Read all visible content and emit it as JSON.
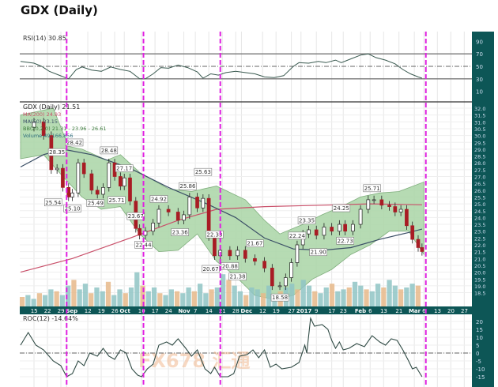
{
  "title": "GDX (Daily)",
  "watermark": "FX678 汇通",
  "colors": {
    "axis_panel": "#0d5656",
    "bb_fill": "#a9d5a6",
    "ma200": "#c9506a",
    "ma50": "#3b4f66",
    "down": "#a81c24",
    "marker": "#e020e0",
    "vol_a": "#8fc4c4",
    "vol_b": "#e6b98a"
  },
  "chart_data": [
    {
      "type": "line",
      "panel": "rsi",
      "legend": "RSI(14) 30.85",
      "ylim": [
        0,
        100
      ],
      "yticks": [
        "90",
        "70",
        "50",
        "30",
        "10"
      ],
      "ytick_values": [
        90,
        70,
        50,
        30,
        10
      ],
      "levels": [
        70,
        50,
        30
      ],
      "x_unit": "days since Aug 15 2016",
      "points": [
        [
          -7,
          58
        ],
        [
          0,
          55
        ],
        [
          4,
          50
        ],
        [
          8,
          42
        ],
        [
          13,
          36
        ],
        [
          18,
          30
        ],
        [
          22,
          45
        ],
        [
          25,
          49
        ],
        [
          30,
          44
        ],
        [
          35,
          42
        ],
        [
          40,
          49
        ],
        [
          45,
          45
        ],
        [
          50,
          42
        ],
        [
          55,
          30
        ],
        [
          58,
          30
        ],
        [
          62,
          38
        ],
        [
          66,
          48
        ],
        [
          70,
          47
        ],
        [
          75,
          52
        ],
        [
          80,
          48
        ],
        [
          85,
          41
        ],
        [
          88,
          31
        ],
        [
          92,
          38
        ],
        [
          96,
          36
        ],
        [
          100,
          40
        ],
        [
          105,
          42
        ],
        [
          110,
          40
        ],
        [
          115,
          38
        ],
        [
          120,
          33
        ],
        [
          125,
          32
        ],
        [
          130,
          35
        ],
        [
          135,
          50
        ],
        [
          138,
          56
        ],
        [
          143,
          55
        ],
        [
          148,
          58
        ],
        [
          152,
          56
        ],
        [
          157,
          60
        ],
        [
          160,
          56
        ],
        [
          165,
          62
        ],
        [
          170,
          68
        ],
        [
          174,
          70
        ],
        [
          178,
          64
        ],
        [
          183,
          60
        ],
        [
          188,
          54
        ],
        [
          192,
          45
        ],
        [
          196,
          38
        ],
        [
          200,
          33
        ],
        [
          202,
          31
        ]
      ]
    },
    {
      "type": "candlestick",
      "panel": "price",
      "legend": [
        "GDX (Daily) 21.51",
        "MA(200) 24.93",
        "MA(50) 23.15",
        "BB(20,2.0) 21.31 - 23.96 - 26.61",
        "Volume 49,166,856"
      ],
      "ylim": [
        18.2,
        32.3
      ],
      "yticks": [
        "32.0",
        "31.5",
        "31.0",
        "30.5",
        "30.0",
        "29.5",
        "29.0",
        "28.5",
        "28.0",
        "27.5",
        "27.0",
        "26.5",
        "26.0",
        "25.5",
        "25.0",
        "24.5",
        "24.0",
        "23.5",
        "23.0",
        "22.5",
        "22.0",
        "21.5",
        "21.0",
        "20.5",
        "20.0",
        "19.5",
        "19.0",
        "18.5"
      ],
      "closes": [
        [
          -7,
          30.6
        ],
        [
          0,
          31.0
        ],
        [
          5,
          30.0
        ],
        [
          9,
          27.5
        ],
        [
          12,
          27.6
        ],
        [
          15,
          26.2
        ],
        [
          18,
          25.5
        ],
        [
          20,
          25.8
        ],
        [
          23,
          28.0
        ],
        [
          26,
          27.2
        ],
        [
          30,
          26.0
        ],
        [
          33,
          25.7
        ],
        [
          36,
          26.2
        ],
        [
          39,
          28.0
        ],
        [
          42,
          27.0
        ],
        [
          45,
          26.3
        ],
        [
          47,
          26.9
        ],
        [
          50,
          25.2
        ],
        [
          53,
          23.2
        ],
        [
          55,
          22.7
        ],
        [
          58,
          23.0
        ],
        [
          62,
          23.6
        ],
        [
          65,
          24.6
        ],
        [
          70,
          24.4
        ],
        [
          75,
          23.8
        ],
        [
          78,
          24.2
        ],
        [
          81,
          25.5
        ],
        [
          85,
          24.7
        ],
        [
          88,
          25.4
        ],
        [
          91,
          22.6
        ],
        [
          94,
          21.2
        ],
        [
          97,
          21.6
        ],
        [
          102,
          21.2
        ],
        [
          106,
          21.6
        ],
        [
          110,
          21.0
        ],
        [
          115,
          20.8
        ],
        [
          120,
          20.3
        ],
        [
          124,
          19.0
        ],
        [
          128,
          19.0
        ],
        [
          131,
          19.6
        ],
        [
          134,
          20.7
        ],
        [
          137,
          22.0
        ],
        [
          140,
          22.8
        ],
        [
          143,
          23.1
        ],
        [
          147,
          22.7
        ],
        [
          151,
          23.3
        ],
        [
          155,
          23.0
        ],
        [
          159,
          23.5
        ],
        [
          162,
          23.0
        ],
        [
          166,
          23.5
        ],
        [
          170,
          24.6
        ],
        [
          174,
          25.3
        ],
        [
          177,
          25.3
        ],
        [
          181,
          24.9
        ],
        [
          185,
          24.8
        ],
        [
          188,
          24.4
        ],
        [
          191,
          24.6
        ],
        [
          194,
          23.4
        ],
        [
          197,
          22.4
        ],
        [
          200,
          21.8
        ],
        [
          202,
          21.51
        ]
      ],
      "ma200": [
        [
          -7,
          20.0
        ],
        [
          20,
          21.0
        ],
        [
          50,
          22.5
        ],
        [
          75,
          23.8
        ],
        [
          95,
          24.6
        ],
        [
          120,
          24.8
        ],
        [
          150,
          24.9
        ],
        [
          175,
          25.0
        ],
        [
          202,
          24.93
        ]
      ],
      "ma50": [
        [
          -7,
          27.7
        ],
        [
          5,
          28.6
        ],
        [
          15,
          29.0
        ],
        [
          30,
          28.6
        ],
        [
          50,
          27.6
        ],
        [
          70,
          26.2
        ],
        [
          90,
          25.0
        ],
        [
          105,
          24.0
        ],
        [
          120,
          22.5
        ],
        [
          135,
          21.7
        ],
        [
          150,
          21.6
        ],
        [
          165,
          21.8
        ],
        [
          180,
          22.4
        ],
        [
          195,
          22.9
        ],
        [
          202,
          23.15
        ]
      ],
      "bb_upper": [
        [
          -7,
          31.5
        ],
        [
          10,
          32.0
        ],
        [
          18,
          29.2
        ],
        [
          25,
          29.0
        ],
        [
          38,
          28.2
        ],
        [
          45,
          28.6
        ],
        [
          55,
          27.3
        ],
        [
          70,
          26.1
        ],
        [
          82,
          25.9
        ],
        [
          95,
          26.3
        ],
        [
          110,
          25.3
        ],
        [
          120,
          23.8
        ],
        [
          128,
          22.8
        ],
        [
          140,
          23.5
        ],
        [
          150,
          24.2
        ],
        [
          160,
          24.8
        ],
        [
          170,
          25.5
        ],
        [
          180,
          25.8
        ],
        [
          190,
          25.9
        ],
        [
          203,
          26.6
        ]
      ],
      "bb_lower": [
        [
          -7,
          28.3
        ],
        [
          5,
          28.6
        ],
        [
          15,
          27.0
        ],
        [
          25,
          25.5
        ],
        [
          35,
          24.6
        ],
        [
          45,
          24.8
        ],
        [
          55,
          22.8
        ],
        [
          65,
          21.5
        ],
        [
          75,
          21.6
        ],
        [
          85,
          22.8
        ],
        [
          95,
          20.8
        ],
        [
          105,
          19.7
        ],
        [
          115,
          18.3
        ],
        [
          125,
          18.0
        ],
        [
          135,
          18.3
        ],
        [
          145,
          19.5
        ],
        [
          155,
          20.2
        ],
        [
          165,
          21.3
        ],
        [
          175,
          22.0
        ],
        [
          185,
          23.0
        ],
        [
          195,
          23.0
        ],
        [
          203,
          21.3
        ]
      ],
      "volume_rel": [
        0.25,
        0.3,
        0.2,
        0.35,
        0.3,
        0.45,
        0.4,
        0.3,
        0.55,
        0.7,
        0.45,
        0.6,
        0.35,
        0.5,
        0.4,
        0.65,
        0.3,
        0.45,
        0.35,
        0.5,
        0.9,
        0.55,
        0.4,
        0.5,
        0.35,
        0.3,
        0.45,
        0.4,
        0.35,
        0.5,
        0.4,
        0.6,
        0.35,
        0.45,
        0.5,
        0.85,
        0.7,
        0.55,
        0.4,
        0.3,
        0.5,
        0.45,
        0.35,
        0.55,
        0.3,
        0.4,
        0.5,
        0.6,
        0.45,
        0.7,
        0.55,
        0.4,
        0.35,
        0.5,
        0.6,
        0.4,
        0.45,
        0.5,
        0.65,
        0.55,
        0.45,
        0.4,
        0.6,
        0.5,
        0.7,
        0.55,
        0.45,
        0.5,
        0.6,
        0.55
      ],
      "annotations": [
        [
          10,
          "25.54"
        ],
        [
          12,
          "28.35"
        ],
        [
          20,
          "25.10"
        ],
        [
          21,
          "28.42"
        ],
        [
          32,
          "25.49"
        ],
        [
          39,
          "28.48"
        ],
        [
          43,
          "25.71"
        ],
        [
          47,
          "27.17"
        ],
        [
          53,
          "23.67"
        ],
        [
          57,
          "22.44"
        ],
        [
          65,
          "24.92"
        ],
        [
          76,
          "23.36"
        ],
        [
          80,
          "25.86"
        ],
        [
          88,
          "25.63"
        ],
        [
          92,
          "20.67"
        ],
        [
          94,
          "22.33"
        ],
        [
          102,
          "20.88"
        ],
        [
          106,
          "21.38"
        ],
        [
          115,
          "21.67"
        ],
        [
          128,
          "18.58"
        ],
        [
          137,
          "22.24"
        ],
        [
          142,
          "23.35"
        ],
        [
          148,
          "21.90"
        ],
        [
          160,
          "24.25"
        ],
        [
          162,
          "22.73"
        ],
        [
          176,
          "25.71"
        ]
      ]
    },
    {
      "type": "line",
      "panel": "roc",
      "legend": "ROC(12) -14.64%",
      "ylim": [
        -20,
        25
      ],
      "yticks": [
        "20",
        "15",
        "10",
        "5",
        "0",
        "-5",
        "-10",
        "-15"
      ],
      "ytick_values": [
        20,
        15,
        10,
        5,
        0,
        -5,
        -10,
        -15
      ],
      "points": [
        [
          -7,
          5
        ],
        [
          -3,
          13
        ],
        [
          1,
          5
        ],
        [
          5,
          2
        ],
        [
          10,
          -5
        ],
        [
          14,
          -8
        ],
        [
          17,
          -15
        ],
        [
          20,
          -13
        ],
        [
          23,
          -5
        ],
        [
          26,
          -8
        ],
        [
          29,
          0
        ],
        [
          33,
          -2
        ],
        [
          36,
          3
        ],
        [
          39,
          -2
        ],
        [
          42,
          -4
        ],
        [
          45,
          2
        ],
        [
          48,
          0
        ],
        [
          51,
          -10
        ],
        [
          54,
          -14
        ],
        [
          56,
          -15
        ],
        [
          59,
          -10
        ],
        [
          62,
          -7
        ],
        [
          65,
          5
        ],
        [
          69,
          7
        ],
        [
          72,
          5
        ],
        [
          75,
          9
        ],
        [
          79,
          3
        ],
        [
          82,
          -2
        ],
        [
          85,
          2
        ],
        [
          89,
          -10
        ],
        [
          92,
          -13
        ],
        [
          94,
          -9
        ],
        [
          97,
          -15
        ],
        [
          101,
          -15
        ],
        [
          104,
          -13
        ],
        [
          107,
          -2
        ],
        [
          111,
          -1
        ],
        [
          114,
          2
        ],
        [
          117,
          -3
        ],
        [
          120,
          2
        ],
        [
          123,
          -9
        ],
        [
          126,
          -7
        ],
        [
          129,
          -10
        ],
        [
          134,
          -9
        ],
        [
          138,
          -6
        ],
        [
          141,
          5
        ],
        [
          142,
          0
        ],
        [
          144,
          22
        ],
        [
          146,
          17
        ],
        [
          150,
          18
        ],
        [
          153,
          15
        ],
        [
          155,
          8
        ],
        [
          157,
          3
        ],
        [
          159,
          7
        ],
        [
          161,
          2
        ],
        [
          164,
          3
        ],
        [
          168,
          6
        ],
        [
          172,
          4
        ],
        [
          176,
          11
        ],
        [
          180,
          7
        ],
        [
          183,
          5
        ],
        [
          186,
          9
        ],
        [
          189,
          8
        ],
        [
          192,
          2
        ],
        [
          195,
          -5
        ],
        [
          197,
          -10
        ],
        [
          199,
          -9
        ],
        [
          201,
          -13
        ],
        [
          202,
          -15
        ]
      ]
    }
  ],
  "x_axis": {
    "labels": [
      "15",
      "22",
      "29",
      "Sep",
      "12",
      "19",
      "26",
      "Oct",
      "10",
      "17",
      "24",
      "Nov",
      "7",
      "14",
      "21",
      "28",
      "Dec",
      "12",
      "19",
      "27",
      "2017",
      "9",
      "17",
      "23",
      "Feb",
      "6",
      "13",
      "21",
      "Mar",
      "6",
      "13",
      "20",
      "27"
    ],
    "days": [
      0,
      7,
      14,
      17,
      28,
      35,
      42,
      47,
      56,
      63,
      70,
      78,
      84,
      91,
      98,
      105,
      108,
      119,
      126,
      134,
      139,
      147,
      155,
      161,
      170,
      175,
      182,
      190,
      198,
      203,
      210,
      217,
      224
    ],
    "bold": [
      "Sep",
      "Oct",
      "Nov",
      "Dec",
      "2017",
      "Feb",
      "Mar"
    ]
  },
  "markers_days": [
    17,
    57,
    97,
    204
  ]
}
